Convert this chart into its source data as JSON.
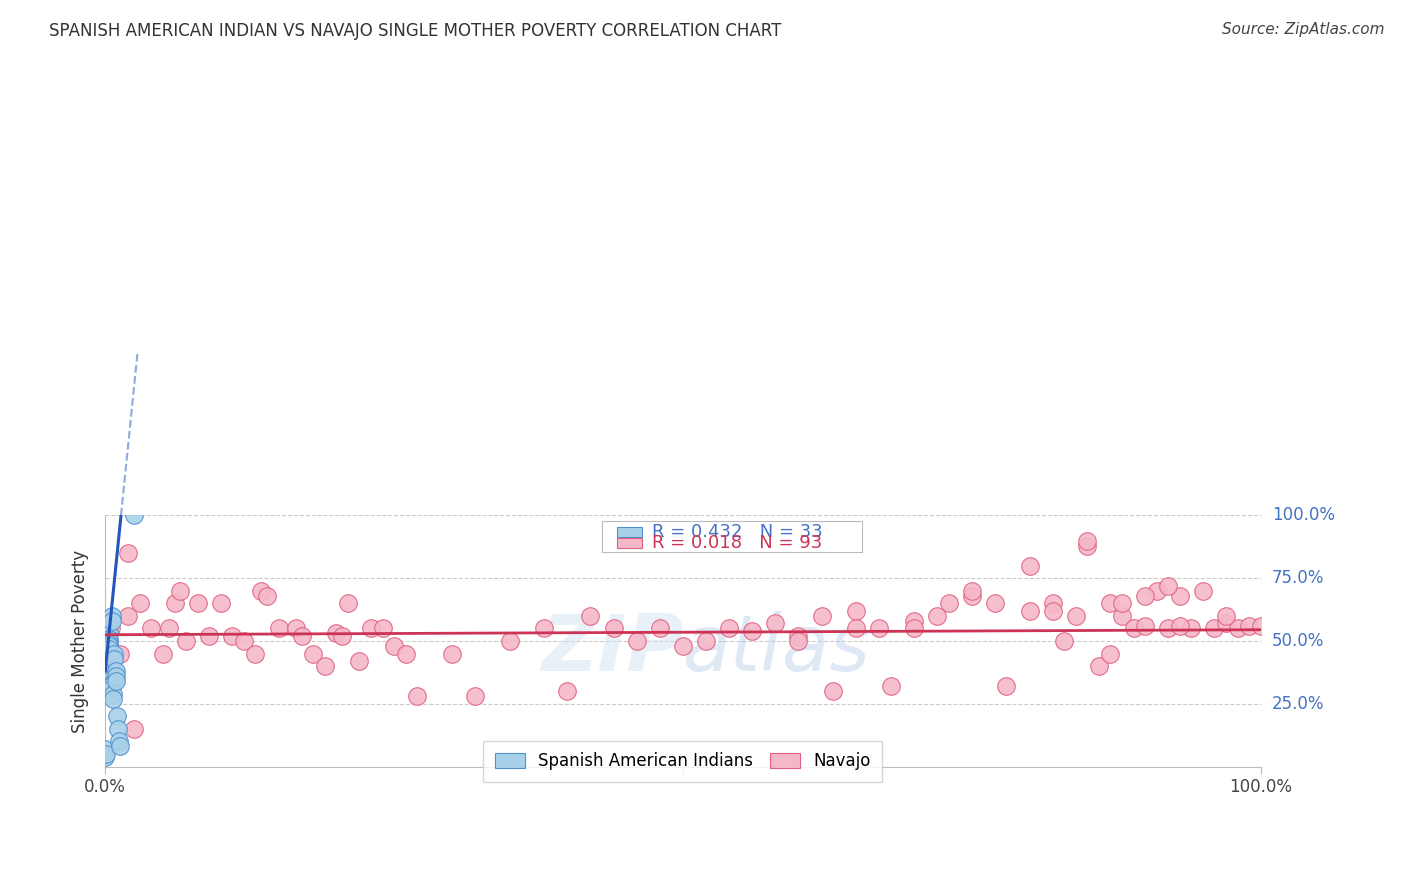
{
  "title": "SPANISH AMERICAN INDIAN VS NAVAJO SINGLE MOTHER POVERTY CORRELATION CHART",
  "source": "Source: ZipAtlas.com",
  "ylabel": "Single Mother Poverty",
  "blue_color": "#a8d0e8",
  "blue_edge_color": "#5090d0",
  "pink_color": "#f5b8c8",
  "pink_edge_color": "#e06080",
  "blue_line_color": "#2255bb",
  "pink_line_color": "#cc3355",
  "watermark": "ZIPatlas",
  "blue_points_x": [
    0.0,
    0.0,
    0.001,
    0.001,
    0.002,
    0.002,
    0.003,
    0.003,
    0.003,
    0.003,
    0.003,
    0.003,
    0.004,
    0.004,
    0.004,
    0.005,
    0.005,
    0.005,
    0.005,
    0.006,
    0.006,
    0.007,
    0.007,
    0.008,
    0.008,
    0.009,
    0.009,
    0.009,
    0.01,
    0.011,
    0.012,
    0.013,
    0.025
  ],
  "blue_points_y": [
    0.07,
    0.04,
    0.4,
    0.05,
    0.55,
    0.47,
    0.53,
    0.51,
    0.5,
    0.49,
    0.48,
    0.47,
    0.38,
    0.36,
    0.34,
    0.35,
    0.33,
    0.32,
    0.31,
    0.6,
    0.58,
    0.29,
    0.27,
    0.45,
    0.43,
    0.38,
    0.36,
    0.34,
    0.2,
    0.15,
    0.1,
    0.08,
    1.0
  ],
  "pink_points_x": [
    0.005,
    0.013,
    0.02,
    0.02,
    0.025,
    0.03,
    0.04,
    0.05,
    0.055,
    0.06,
    0.065,
    0.07,
    0.08,
    0.09,
    0.1,
    0.11,
    0.12,
    0.13,
    0.135,
    0.14,
    0.15,
    0.165,
    0.17,
    0.18,
    0.19,
    0.2,
    0.205,
    0.21,
    0.22,
    0.23,
    0.24,
    0.25,
    0.26,
    0.27,
    0.3,
    0.32,
    0.35,
    0.38,
    0.4,
    0.42,
    0.44,
    0.46,
    0.48,
    0.5,
    0.52,
    0.54,
    0.56,
    0.58,
    0.6,
    0.62,
    0.63,
    0.65,
    0.67,
    0.68,
    0.7,
    0.72,
    0.73,
    0.75,
    0.77,
    0.78,
    0.8,
    0.82,
    0.83,
    0.84,
    0.85,
    0.86,
    0.87,
    0.88,
    0.89,
    0.9,
    0.91,
    0.92,
    0.93,
    0.94,
    0.95,
    0.96,
    0.97,
    0.98,
    0.99,
    1.0,
    0.8,
    0.85,
    0.88,
    0.9,
    0.92,
    0.6,
    0.65,
    0.7,
    0.75,
    0.82,
    0.87,
    0.93,
    0.97
  ],
  "pink_points_y": [
    0.55,
    0.45,
    0.85,
    0.6,
    0.15,
    0.65,
    0.55,
    0.45,
    0.55,
    0.65,
    0.7,
    0.5,
    0.65,
    0.52,
    0.65,
    0.52,
    0.5,
    0.45,
    0.7,
    0.68,
    0.55,
    0.55,
    0.52,
    0.45,
    0.4,
    0.53,
    0.52,
    0.65,
    0.42,
    0.55,
    0.55,
    0.48,
    0.45,
    0.28,
    0.45,
    0.28,
    0.5,
    0.55,
    0.3,
    0.6,
    0.55,
    0.5,
    0.55,
    0.48,
    0.5,
    0.55,
    0.54,
    0.57,
    0.52,
    0.6,
    0.3,
    0.62,
    0.55,
    0.32,
    0.58,
    0.6,
    0.65,
    0.68,
    0.65,
    0.32,
    0.62,
    0.65,
    0.5,
    0.6,
    0.88,
    0.4,
    0.65,
    0.6,
    0.55,
    0.56,
    0.7,
    0.55,
    0.68,
    0.55,
    0.7,
    0.55,
    0.57,
    0.55,
    0.56,
    0.56,
    0.8,
    0.9,
    0.65,
    0.68,
    0.72,
    0.5,
    0.55,
    0.55,
    0.7,
    0.62,
    0.45,
    0.56,
    0.6
  ],
  "blue_trend_x0": 0.0,
  "blue_trend_y0": 0.38,
  "blue_trend_x1": 0.013,
  "blue_trend_y1": 0.97,
  "pink_trend_x0": 0.0,
  "pink_trend_y0": 0.525,
  "pink_trend_x1": 1.0,
  "pink_trend_y1": 0.545,
  "xlim": [
    0.0,
    1.0
  ],
  "ylim": [
    0.0,
    1.0
  ],
  "yticks": [
    0.25,
    0.5,
    0.75,
    1.0
  ],
  "ytick_labels": [
    "25.0%",
    "50.0%",
    "75.0%",
    "100.0%"
  ],
  "xtick_left_label": "0.0%",
  "xtick_right_label": "100.0%",
  "legend_blue_text": "R = 0.432   N = 33",
  "legend_pink_text": "R = 0.018   N = 93",
  "legend_blue_color": "#4472c4",
  "legend_pink_color": "#cc3355",
  "ytick_color": "#4472c4",
  "bottom_legend_labels": [
    "Spanish American Indians",
    "Navajo"
  ],
  "marker_size": 160
}
